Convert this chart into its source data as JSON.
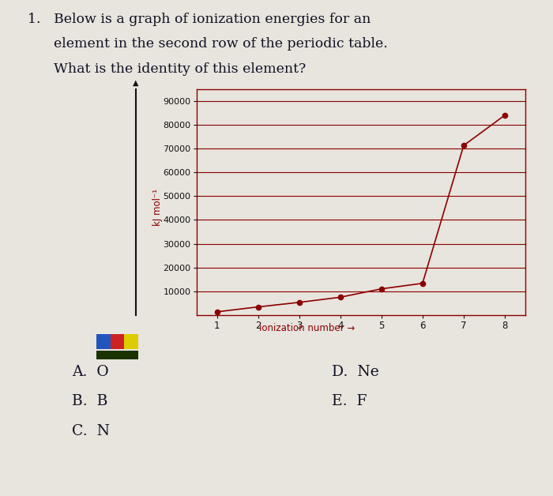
{
  "ionization_numbers": [
    1,
    2,
    3,
    4,
    5,
    6,
    7,
    8
  ],
  "ionization_energies": [
    1314,
    3388,
    5300,
    7469,
    10990,
    13326,
    71330,
    84078
  ],
  "line_color": "#8B0000",
  "marker_color": "#8B0000",
  "grid_color": "#8B0000",
  "background_color": "#e8e4de",
  "ylabel": "kJ mol⁻¹",
  "xlabel": "ionization number →",
  "xlabel_color": "#8B0000",
  "ylim": [
    0,
    95000
  ],
  "yticks": [
    10000,
    20000,
    30000,
    40000,
    50000,
    60000,
    70000,
    80000,
    90000
  ],
  "xlim": [
    0.5,
    8.5
  ],
  "xticks": [
    1,
    2,
    3,
    4,
    5,
    6,
    7,
    8
  ],
  "question_line1": "1.   Below is a graph of ionization energies for an",
  "question_line2": "      element in the second row of the periodic table.",
  "question_line3": "      What is the identity of this element?",
  "answers_left": [
    "A.  O",
    "B.  B",
    "C.  N"
  ],
  "answers_right": [
    "D.  Ne",
    "E.  F"
  ],
  "answer_color": "#111122",
  "text_color": "#111122"
}
